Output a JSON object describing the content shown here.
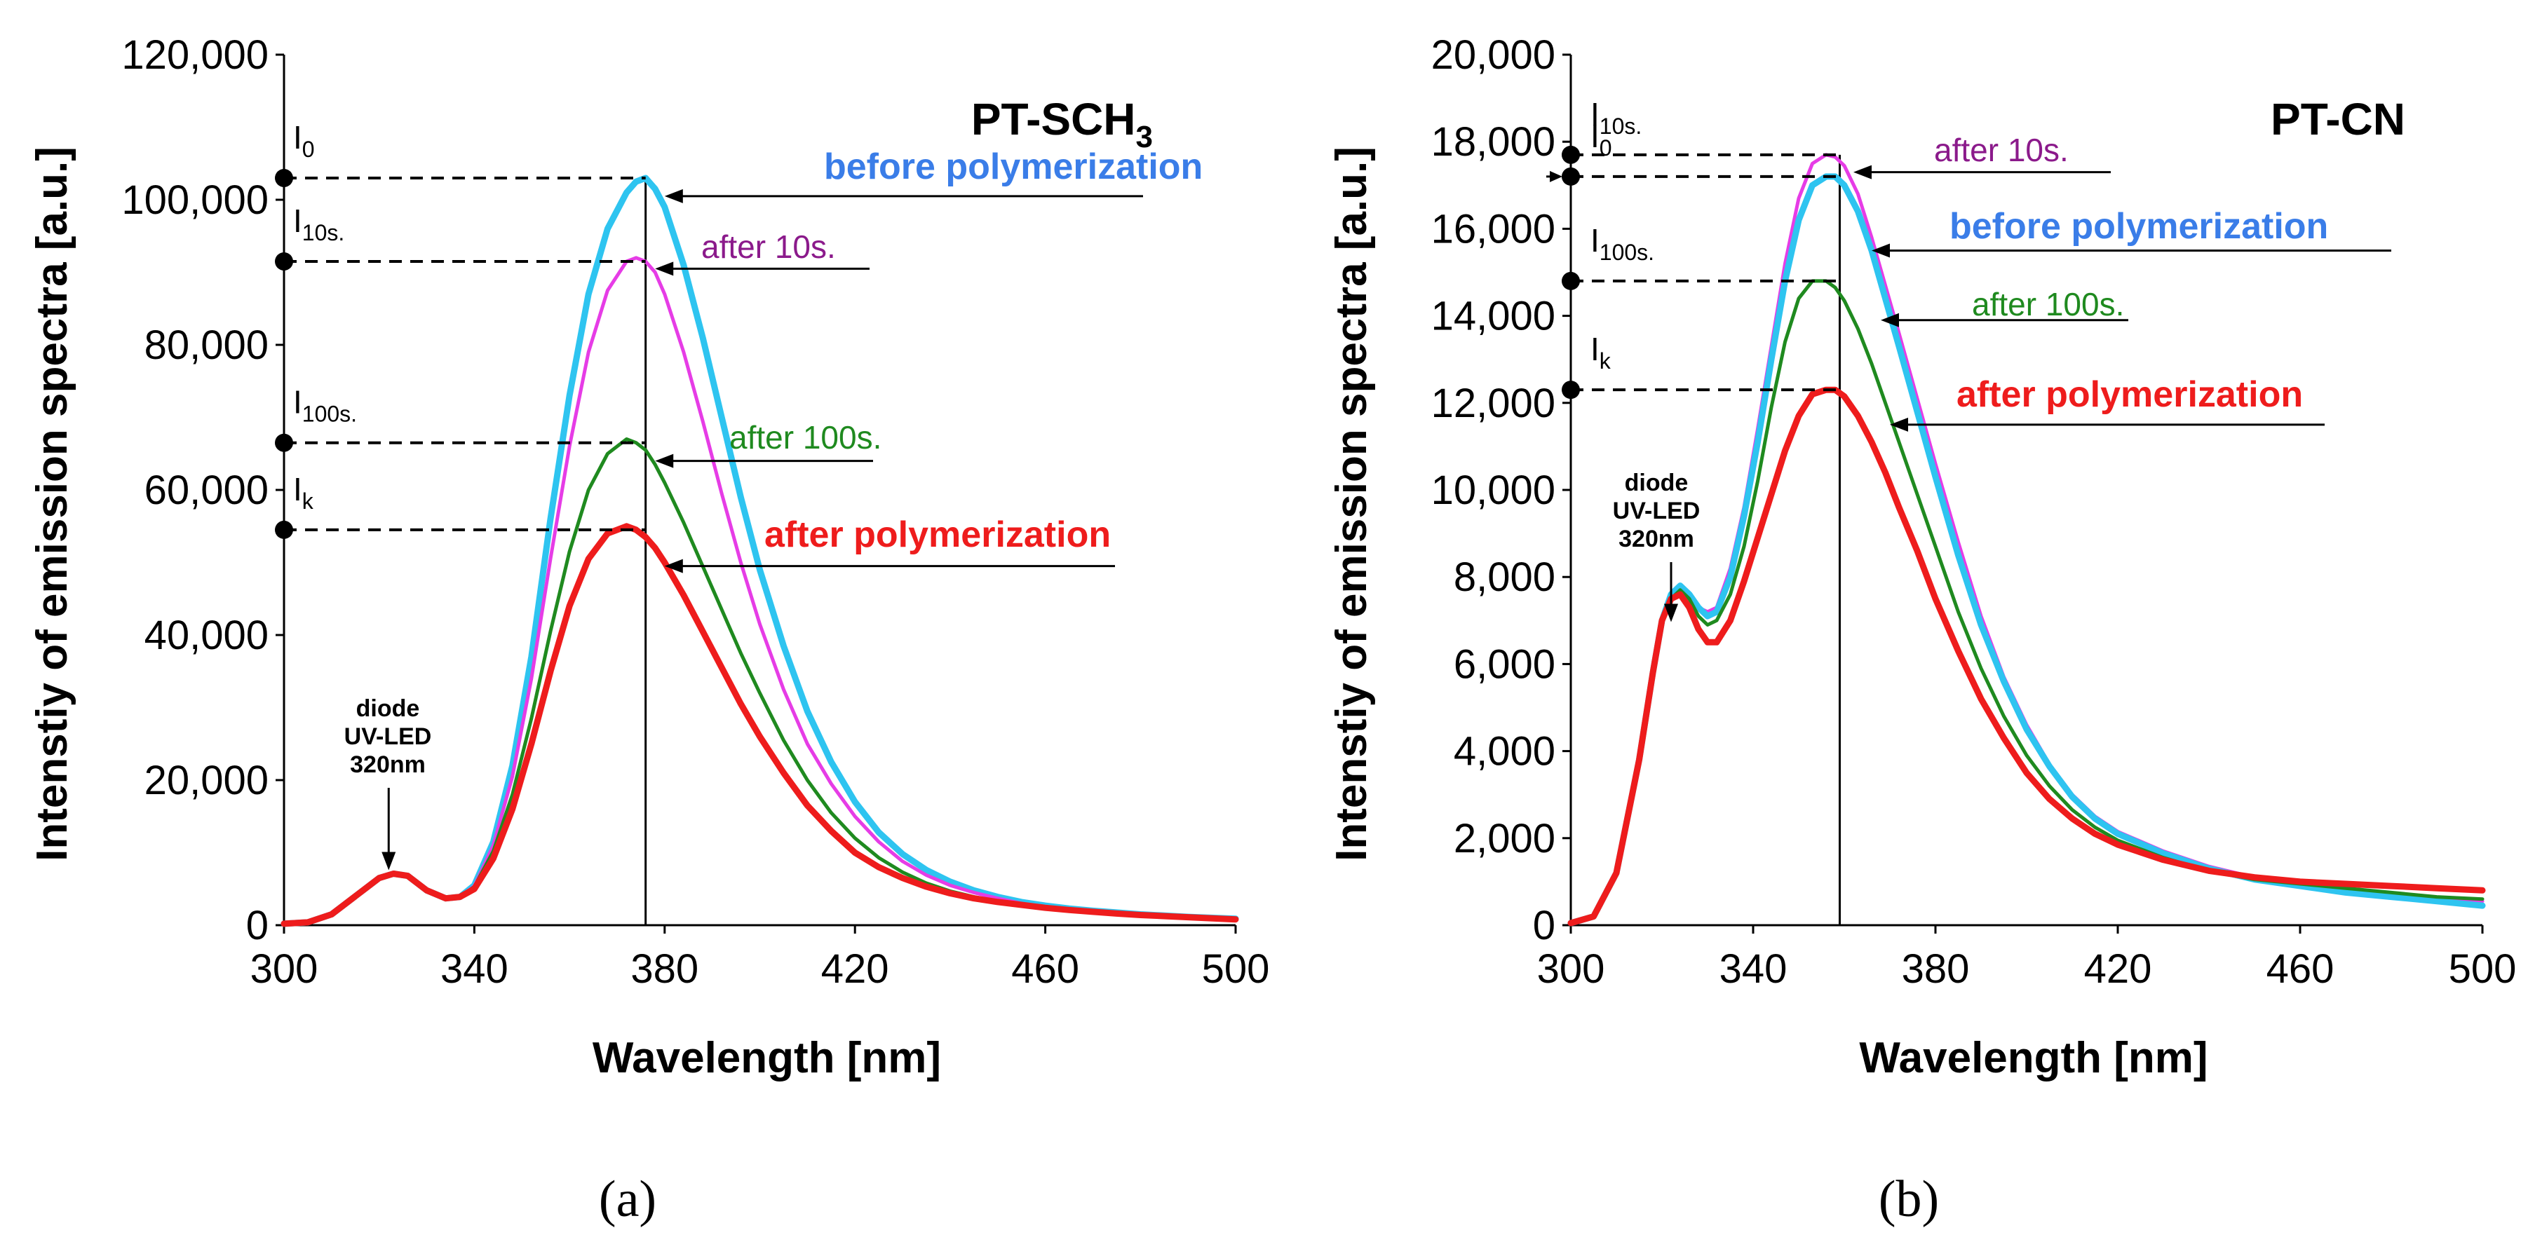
{
  "chart_data": [
    {
      "type": "line",
      "panel_label": "(a)",
      "title": "PT-SCH",
      "title_subscript": "3",
      "xlabel": "Wavelength [nm]",
      "ylabel": "Intenstiy of emission spectra [a.u.]",
      "xlim": [
        300,
        500
      ],
      "ylim": [
        0,
        120000
      ],
      "xticks": [
        300,
        340,
        380,
        420,
        460,
        500
      ],
      "xtick_labels": [
        "300",
        "340",
        "380",
        "420",
        "460",
        "500"
      ],
      "yticks": [
        0,
        20000,
        40000,
        60000,
        80000,
        100000,
        120000
      ],
      "ytick_labels": [
        "0",
        "20,000",
        "40,000",
        "60,000",
        "80,000",
        "100,000",
        "120,000"
      ],
      "peak_wavelength": 376,
      "series": [
        {
          "name": "before polymerization",
          "label": "before polymerization",
          "color": "#2ec4f0",
          "label_color": "#3a7de8",
          "bold": true,
          "x": [
            300,
            305,
            310,
            315,
            320,
            323,
            326,
            330,
            334,
            337,
            340,
            344,
            348,
            352,
            356,
            360,
            364,
            368,
            372,
            374,
            376,
            378,
            380,
            384,
            388,
            392,
            396,
            400,
            405,
            410,
            415,
            420,
            425,
            430,
            435,
            440,
            445,
            450,
            455,
            460,
            465,
            470,
            475,
            480,
            490,
            500
          ],
          "y": [
            200,
            400,
            1500,
            4000,
            6500,
            7100,
            6800,
            4800,
            3700,
            3900,
            5500,
            11500,
            22000,
            37000,
            56000,
            73000,
            87000,
            96000,
            101000,
            102500,
            103000,
            101500,
            99000,
            91000,
            81000,
            70000,
            59000,
            49000,
            38500,
            29500,
            22500,
            17000,
            12800,
            9800,
            7600,
            6000,
            4800,
            3900,
            3200,
            2700,
            2300,
            2000,
            1750,
            1500,
            1150,
            900
          ]
        },
        {
          "name": "after 10s.",
          "label": "after 10s.",
          "color": "#e63ce6",
          "label_color": "#8b1a8b",
          "bold": false,
          "x": [
            300,
            305,
            310,
            315,
            320,
            323,
            326,
            330,
            334,
            337,
            340,
            344,
            348,
            352,
            356,
            360,
            364,
            368,
            372,
            374,
            376,
            378,
            380,
            384,
            388,
            392,
            396,
            400,
            405,
            410,
            415,
            420,
            425,
            430,
            435,
            440,
            445,
            450,
            455,
            460,
            465,
            470,
            475,
            480,
            490,
            500
          ],
          "y": [
            200,
            400,
            1500,
            4000,
            6500,
            7100,
            6800,
            4800,
            3700,
            3900,
            5400,
            11000,
            20500,
            34000,
            50500,
            66000,
            79000,
            87500,
            91500,
            92000,
            91500,
            90000,
            87000,
            79000,
            69500,
            59500,
            50000,
            41500,
            32500,
            25000,
            19500,
            15000,
            11500,
            8800,
            6900,
            5500,
            4500,
            3700,
            3000,
            2500,
            2100,
            1800,
            1550,
            1350,
            1000,
            700
          ]
        },
        {
          "name": "after 100s.",
          "label": "after 100s.",
          "color": "#1f8a1f",
          "label_color": "#1f8a1f",
          "bold": false,
          "x": [
            300,
            305,
            310,
            315,
            320,
            323,
            326,
            330,
            334,
            337,
            340,
            344,
            348,
            352,
            356,
            360,
            364,
            368,
            372,
            374,
            376,
            378,
            380,
            384,
            388,
            392,
            396,
            400,
            405,
            410,
            415,
            420,
            425,
            430,
            435,
            440,
            445,
            450,
            455,
            460,
            465,
            470,
            475,
            480,
            490,
            500
          ],
          "y": [
            200,
            400,
            1500,
            4000,
            6500,
            7100,
            6800,
            4800,
            3700,
            3900,
            5300,
            10200,
            18000,
            28500,
            40500,
            51500,
            60000,
            65000,
            67000,
            66500,
            65500,
            63500,
            61000,
            55500,
            49500,
            43500,
            37500,
            32000,
            25500,
            20000,
            15500,
            12000,
            9300,
            7300,
            5800,
            4700,
            3900,
            3300,
            2800,
            2400,
            2100,
            1800,
            1600,
            1400,
            1100,
            800
          ]
        },
        {
          "name": "after polymerization",
          "label": "after polymerization",
          "color": "#ee1c1c",
          "label_color": "#ee1c1c",
          "bold": true,
          "x": [
            300,
            305,
            310,
            315,
            320,
            323,
            326,
            330,
            334,
            337,
            340,
            344,
            348,
            352,
            356,
            360,
            364,
            368,
            372,
            374,
            376,
            378,
            380,
            384,
            388,
            392,
            396,
            400,
            405,
            410,
            415,
            420,
            425,
            430,
            435,
            440,
            445,
            450,
            455,
            460,
            465,
            470,
            475,
            480,
            490,
            500
          ],
          "y": [
            200,
            400,
            1500,
            4000,
            6500,
            7100,
            6800,
            4800,
            3700,
            3900,
            5000,
            9200,
            16000,
            25000,
            35000,
            44000,
            50500,
            54000,
            55000,
            54500,
            53500,
            52000,
            50000,
            45500,
            40500,
            35500,
            30500,
            26000,
            21000,
            16500,
            13000,
            10000,
            8000,
            6500,
            5300,
            4400,
            3700,
            3200,
            2800,
            2400,
            2100,
            1850,
            1600,
            1400,
            1100,
            800
          ]
        }
      ],
      "markers": [
        {
          "label": "I",
          "sub": "0",
          "value": 103000
        },
        {
          "label": "I",
          "sub": "10s.",
          "value": 91500
        },
        {
          "label": "I",
          "sub": "100s.",
          "value": 66500
        },
        {
          "label": "I",
          "sub": "k",
          "value": 54500
        }
      ],
      "annotation": {
        "lines": [
          "diode",
          "UV-LED",
          "320nm"
        ],
        "x": 322,
        "y": 7200
      }
    },
    {
      "type": "line",
      "panel_label": "(b)",
      "title": "PT-CN",
      "title_subscript": "",
      "xlabel": "Wavelength [nm]",
      "ylabel": "Intenstiy of emission spectra [a.u.]",
      "xlim": [
        300,
        500
      ],
      "ylim": [
        0,
        20000
      ],
      "xticks": [
        300,
        340,
        380,
        420,
        460,
        500
      ],
      "xtick_labels": [
        "300",
        "340",
        "380",
        "420",
        "460",
        "500"
      ],
      "yticks": [
        0,
        2000,
        4000,
        6000,
        8000,
        10000,
        12000,
        14000,
        16000,
        18000,
        20000
      ],
      "ytick_labels": [
        "0",
        "2,000",
        "4,000",
        "6,000",
        "8,000",
        "10,000",
        "12,000",
        "14,000",
        "16,000",
        "18,000",
        "20,000"
      ],
      "peak_wavelength": 359,
      "series": [
        {
          "name": "after 10s.",
          "label": "after 10s.",
          "color": "#e63ce6",
          "label_color": "#8b1a8b",
          "bold": false,
          "x": [
            300,
            305,
            310,
            315,
            318,
            320,
            322,
            324,
            326,
            328,
            330,
            332,
            335,
            338,
            341,
            344,
            347,
            350,
            353,
            356,
            358,
            360,
            363,
            366,
            369,
            372,
            376,
            380,
            385,
            390,
            395,
            400,
            405,
            410,
            415,
            420,
            430,
            440,
            450,
            460,
            470,
            480,
            490,
            500
          ],
          "y": [
            50,
            200,
            1200,
            3800,
            5800,
            7000,
            7600,
            7800,
            7600,
            7300,
            7200,
            7300,
            8200,
            9600,
            11400,
            13300,
            15200,
            16700,
            17500,
            17700,
            17650,
            17450,
            16800,
            15800,
            14700,
            13600,
            12100,
            10600,
            8800,
            7100,
            5700,
            4600,
            3700,
            3000,
            2500,
            2150,
            1700,
            1350,
            1100,
            950,
            800,
            700,
            620,
            550
          ]
        },
        {
          "name": "before polymerization",
          "label": "before polymerization",
          "color": "#2ec4f0",
          "label_color": "#3a7de8",
          "bold": true,
          "x": [
            300,
            305,
            310,
            315,
            318,
            320,
            322,
            324,
            326,
            328,
            330,
            332,
            335,
            338,
            341,
            344,
            347,
            350,
            353,
            356,
            358,
            360,
            363,
            366,
            369,
            372,
            376,
            380,
            385,
            390,
            395,
            400,
            405,
            410,
            415,
            420,
            430,
            440,
            450,
            460,
            470,
            480,
            490,
            500
          ],
          "y": [
            50,
            200,
            1200,
            3800,
            5800,
            7000,
            7600,
            7800,
            7600,
            7300,
            7100,
            7200,
            8000,
            9400,
            11100,
            13000,
            14800,
            16200,
            17000,
            17200,
            17200,
            17000,
            16400,
            15500,
            14400,
            13300,
            11800,
            10300,
            8500,
            6900,
            5600,
            4500,
            3650,
            2950,
            2450,
            2100,
            1650,
            1300,
            1050,
            900,
            750,
            650,
            550,
            450
          ]
        },
        {
          "name": "after 100s.",
          "label": "after 100s.",
          "color": "#1f8a1f",
          "label_color": "#1f8a1f",
          "bold": false,
          "x": [
            300,
            305,
            310,
            315,
            318,
            320,
            322,
            324,
            326,
            328,
            330,
            332,
            335,
            338,
            341,
            344,
            347,
            350,
            353,
            356,
            358,
            360,
            363,
            366,
            369,
            372,
            376,
            380,
            385,
            390,
            395,
            400,
            405,
            410,
            415,
            420,
            430,
            440,
            450,
            460,
            470,
            480,
            490,
            500
          ],
          "y": [
            50,
            200,
            1200,
            3800,
            5800,
            7000,
            7500,
            7700,
            7500,
            7100,
            6900,
            7000,
            7600,
            8700,
            10200,
            11900,
            13400,
            14400,
            14800,
            14800,
            14650,
            14350,
            13700,
            12900,
            12000,
            11100,
            9900,
            8700,
            7200,
            5900,
            4800,
            3900,
            3200,
            2650,
            2250,
            1950,
            1550,
            1250,
            1050,
            950,
            850,
            750,
            650,
            600
          ]
        },
        {
          "name": "after polymerization",
          "label": "after polymerization",
          "color": "#ee1c1c",
          "label_color": "#ee1c1c",
          "bold": true,
          "x": [
            300,
            305,
            310,
            315,
            318,
            320,
            322,
            324,
            326,
            328,
            330,
            332,
            335,
            338,
            341,
            344,
            347,
            350,
            353,
            356,
            358,
            360,
            363,
            366,
            369,
            372,
            376,
            380,
            385,
            390,
            395,
            400,
            405,
            410,
            415,
            420,
            430,
            440,
            450,
            460,
            470,
            480,
            490,
            500
          ],
          "y": [
            50,
            200,
            1200,
            3800,
            5800,
            7000,
            7500,
            7600,
            7300,
            6800,
            6500,
            6500,
            7000,
            7900,
            8900,
            9900,
            10900,
            11700,
            12200,
            12300,
            12300,
            12150,
            11700,
            11100,
            10400,
            9600,
            8600,
            7500,
            6300,
            5200,
            4300,
            3500,
            2900,
            2450,
            2100,
            1850,
            1500,
            1250,
            1100,
            1000,
            950,
            900,
            850,
            800
          ]
        }
      ],
      "markers": [
        {
          "label": "I",
          "sub": "10s.",
          "value": 17700
        },
        {
          "label": "I",
          "sub": "0",
          "value": 17200
        },
        {
          "label": "I",
          "sub": "100s.",
          "value": 14800
        },
        {
          "label": "I",
          "sub": "k",
          "value": 12300
        }
      ],
      "annotation": {
        "lines": [
          "diode",
          "UV-LED",
          "320nm"
        ],
        "x": 322,
        "y": 6900
      }
    }
  ]
}
